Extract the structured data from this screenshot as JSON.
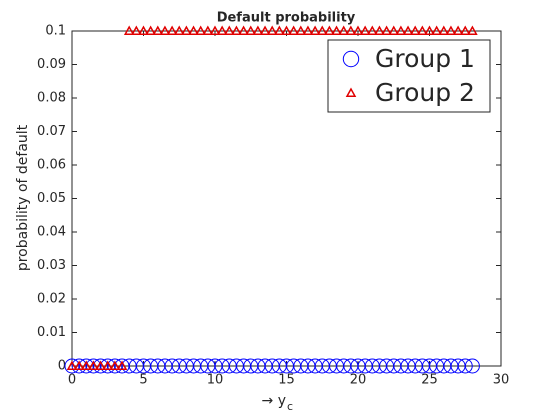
{
  "chart_data": {
    "type": "scatter",
    "title": "Default probability",
    "xlabel": "→ y",
    "xlabel_subscript": "c",
    "ylabel": "probability of default",
    "x": [
      0,
      0.5,
      1,
      1.5,
      2,
      2.5,
      3,
      3.5,
      4,
      4.5,
      5,
      5.5,
      6,
      6.5,
      7,
      7.5,
      8,
      8.5,
      9,
      9.5,
      10,
      10.5,
      11,
      11.5,
      12,
      12.5,
      13,
      13.5,
      14,
      14.5,
      15,
      15.5,
      16,
      16.5,
      17,
      17.5,
      18,
      18.5,
      19,
      19.5,
      20,
      20.5,
      21,
      21.5,
      22,
      22.5,
      23,
      23.5,
      24,
      24.5,
      25,
      25.5,
      26,
      26.5,
      27,
      27.5,
      28
    ],
    "series": [
      {
        "name": "Group 1",
        "color": "#0000ff",
        "marker": "circle",
        "values": [
          0,
          0,
          0,
          0,
          0,
          0,
          0,
          0,
          0,
          0,
          0,
          0,
          0,
          0,
          0,
          0,
          0,
          0,
          0,
          0,
          0,
          0,
          0,
          0,
          0,
          0,
          0,
          0,
          0,
          0,
          0,
          0,
          0,
          0,
          0,
          0,
          0,
          0,
          0,
          0,
          0,
          0,
          0,
          0,
          0,
          0,
          0,
          0,
          0,
          0,
          0,
          0,
          0,
          0,
          0,
          0,
          0
        ]
      },
      {
        "name": "Group 2",
        "color": "#e00000",
        "marker": "triangle",
        "values": [
          0,
          0,
          0,
          0,
          0,
          0,
          0,
          0,
          0.1,
          0.1,
          0.1,
          0.1,
          0.1,
          0.1,
          0.1,
          0.1,
          0.1,
          0.1,
          0.1,
          0.1,
          0.1,
          0.1,
          0.1,
          0.1,
          0.1,
          0.1,
          0.1,
          0.1,
          0.1,
          0.1,
          0.1,
          0.1,
          0.1,
          0.1,
          0.1,
          0.1,
          0.1,
          0.1,
          0.1,
          0.1,
          0.1,
          0.1,
          0.1,
          0.1,
          0.1,
          0.1,
          0.1,
          0.1,
          0.1,
          0.1,
          0.1,
          0.1,
          0.1,
          0.1,
          0.1,
          0.1,
          0.1
        ]
      }
    ],
    "xlim": [
      0,
      30
    ],
    "xticks": [
      0,
      5,
      10,
      15,
      20,
      25,
      30
    ],
    "ylim": [
      0,
      0.1
    ],
    "yticks": [
      0,
      0.01,
      0.02,
      0.03,
      0.04,
      0.05,
      0.06,
      0.07,
      0.08,
      0.09,
      0.1
    ],
    "grid": false,
    "legend": "northeast"
  }
}
